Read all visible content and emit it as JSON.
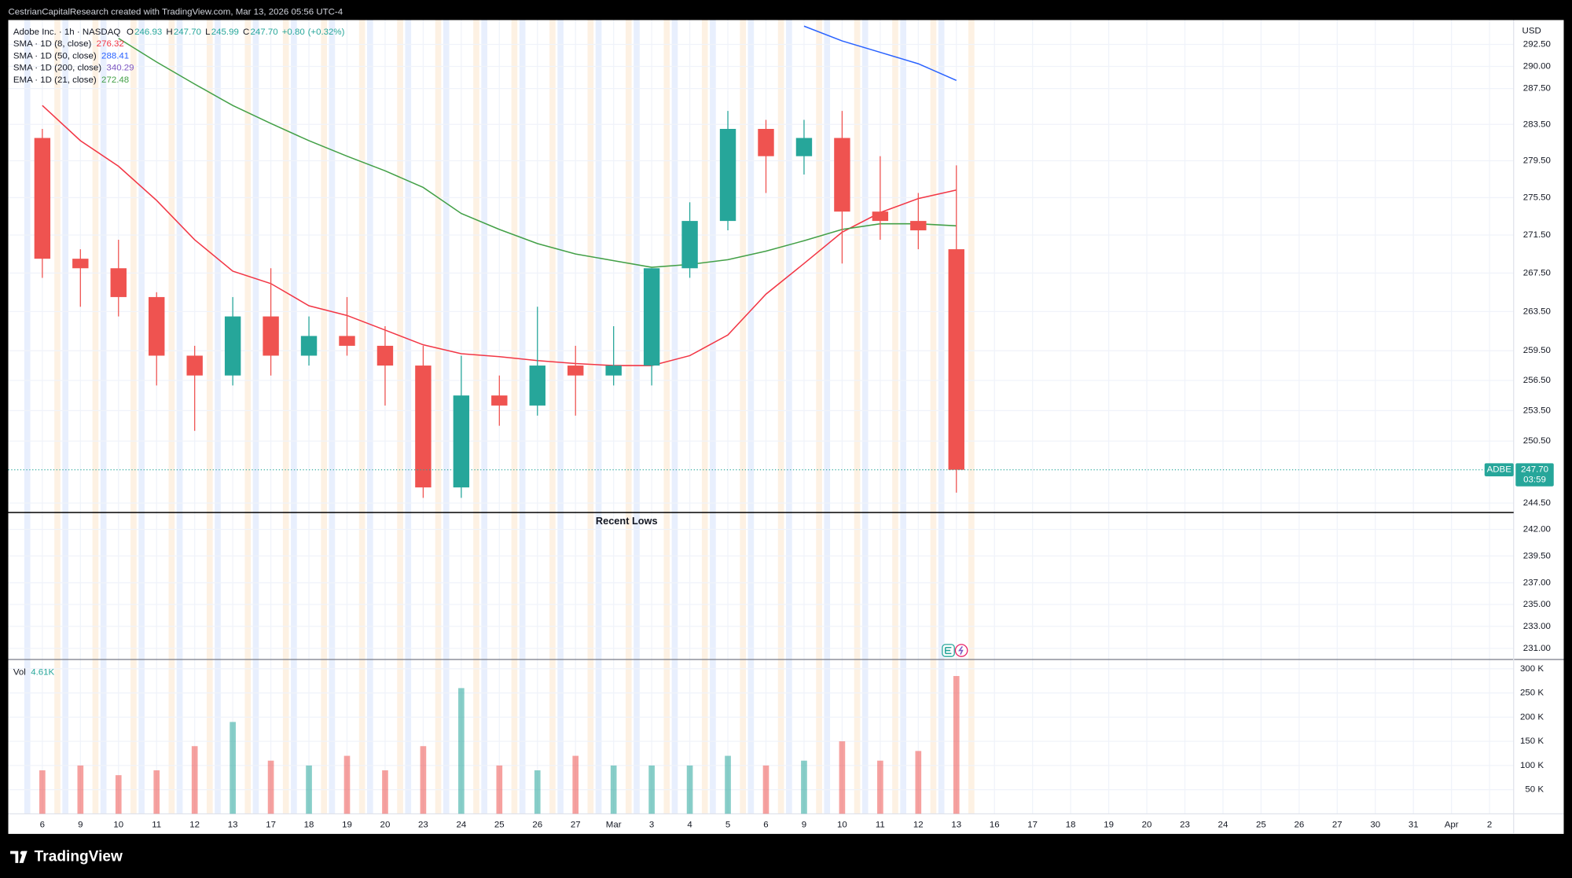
{
  "chart_data": {
    "type": "candlestick",
    "attribution": "CestrianCapitalResearch created with TradingView.com, Mar 13, 2026 05:56 UTC-4",
    "title": "Adobe Inc. · 1h · NASDAQ",
    "last_bar": [
      {
        "name": "O",
        "value": 246.93
      },
      {
        "name": "H",
        "value": 247.7,
        "label": "247.70"
      },
      {
        "name": "L",
        "value": 245.99
      },
      {
        "name": "C",
        "value": 247.7,
        "label": "247.70"
      }
    ],
    "change": {
      "value": 0.8,
      "label": "+0.80"
    },
    "change_pct": {
      "value": 0.32,
      "label": "(+0.32%)"
    },
    "currency": "USD",
    "log_scale": true,
    "grid": true,
    "categories": [
      "6",
      "9",
      "10",
      "11",
      "12",
      "13",
      "17",
      "18",
      "19",
      "20",
      "23",
      "24",
      "25",
      "26",
      "27",
      "Mar",
      "3",
      "4",
      "5",
      "6",
      "9",
      "10",
      "11",
      "12",
      "13",
      "16",
      "17",
      "18",
      "19",
      "20",
      "23",
      "24",
      "25",
      "26",
      "27",
      "30",
      "31",
      "Apr",
      "2"
    ],
    "candles": {
      "up_color": "#26a69a",
      "down_color": "#ef5350",
      "open": [
        282,
        269,
        268,
        265,
        259,
        257,
        263,
        259,
        261,
        260,
        258,
        246,
        255,
        254,
        258,
        257,
        258,
        268,
        273,
        283,
        280,
        282,
        274,
        273,
        270,
        null,
        null,
        null,
        null,
        null,
        null,
        null,
        null,
        null,
        null,
        null,
        null,
        null,
        null
      ],
      "high": [
        283,
        270,
        271,
        265.5,
        260,
        265,
        268,
        263,
        265,
        262,
        260,
        259,
        257,
        264,
        260,
        262,
        268,
        275,
        285,
        284,
        284,
        285,
        280,
        276,
        279,
        null,
        null,
        null,
        null,
        null,
        null,
        null,
        null,
        null,
        null,
        null,
        null,
        null,
        null
      ],
      "low": [
        267,
        264,
        263,
        256,
        251.5,
        256,
        257,
        258,
        259,
        254,
        245,
        245,
        252,
        253,
        253,
        256,
        256,
        267,
        272,
        276,
        278,
        268.5,
        271,
        270,
        245.5,
        null,
        null,
        null,
        null,
        null,
        null,
        null,
        null,
        null,
        null,
        null,
        null,
        null,
        null
      ],
      "close": [
        269,
        268,
        265,
        259,
        257,
        263,
        259,
        261,
        260,
        258,
        246,
        255,
        254,
        258,
        257,
        258,
        268,
        273,
        283,
        280,
        282,
        274,
        273,
        272,
        247.7,
        null,
        null,
        null,
        null,
        null,
        null,
        null,
        null,
        null,
        null,
        null,
        null,
        null,
        null
      ]
    },
    "series": [
      {
        "name": "SMA · 1D (8, close)",
        "color": "#f23645",
        "last_value": 276.32,
        "values": [
          285.6,
          281.7,
          278.9,
          275.2,
          271.0,
          267.7,
          266.4,
          264.1,
          263.1,
          261.6,
          260.1,
          259.2,
          258.9,
          258.5,
          258.2,
          258.0,
          258.0,
          259.0,
          261.1,
          265.3,
          268.5,
          271.8,
          273.9,
          275.4,
          276.32,
          null,
          null,
          null,
          null,
          null,
          null,
          null,
          null,
          null,
          null,
          null,
          null,
          null,
          null
        ]
      },
      {
        "name": "SMA · 1D (50, close)",
        "color": "#2962ff",
        "last_value": 288.41,
        "values": [
          null,
          null,
          null,
          null,
          null,
          null,
          null,
          null,
          null,
          null,
          null,
          null,
          null,
          null,
          null,
          null,
          null,
          null,
          null,
          null,
          294.6,
          292.9,
          291.6,
          290.3,
          288.41,
          null,
          null,
          null,
          null,
          null,
          null,
          null,
          null,
          null,
          null,
          null,
          null,
          null,
          null
        ]
      },
      {
        "name": "SMA · 1D (200, close)",
        "color": "#7e57c2",
        "last_value": 340.29,
        "values": [
          null,
          null,
          null,
          null,
          null,
          null,
          null,
          null,
          null,
          null,
          null,
          null,
          null,
          null,
          null,
          null,
          null,
          null,
          null,
          null,
          null,
          null,
          null,
          null,
          null,
          null,
          null,
          null,
          null,
          null,
          null,
          null,
          null,
          null,
          null,
          null,
          null,
          null,
          null
        ]
      },
      {
        "name": "EMA · 1D (21, close)",
        "color": "#43a047",
        "last_value": 272.48,
        "values": [
          null,
          null,
          293.2,
          290.5,
          288.0,
          285.6,
          283.6,
          281.7,
          280.0,
          278.4,
          276.6,
          273.8,
          272.1,
          270.6,
          269.5,
          268.8,
          268.1,
          268.4,
          268.9,
          269.8,
          270.9,
          272.1,
          272.7,
          272.7,
          272.48,
          null,
          null,
          null,
          null,
          null,
          null,
          null,
          null,
          null,
          null,
          null,
          null,
          null,
          null
        ]
      }
    ],
    "ylim": [
      230.0,
      295.3
    ],
    "yticks": [
      {
        "value": 292.5,
        "label": "292.50"
      },
      {
        "value": 290,
        "label": "290.00"
      },
      {
        "value": 287.5,
        "label": "287.50"
      },
      {
        "value": 283.5,
        "label": "283.50"
      },
      {
        "value": 279.5,
        "label": "279.50"
      },
      {
        "value": 275.5,
        "label": "275.50"
      },
      {
        "value": 271.5,
        "label": "271.50"
      },
      {
        "value": 267.5,
        "label": "267.50"
      },
      {
        "value": 263.5,
        "label": "263.50"
      },
      {
        "value": 259.5,
        "label": "259.50"
      },
      {
        "value": 256.5,
        "label": "256.50"
      },
      {
        "value": 253.5,
        "label": "253.50"
      },
      {
        "value": 250.5,
        "label": "250.50"
      },
      {
        "value": 244.5,
        "label": "244.50"
      },
      {
        "value": 242,
        "label": "242.00"
      },
      {
        "value": 239.5,
        "label": "239.50"
      },
      {
        "value": 237,
        "label": "237.00"
      },
      {
        "value": 235,
        "label": "235.00"
      },
      {
        "value": 233,
        "label": "233.00"
      },
      {
        "value": 231,
        "label": "231.00"
      }
    ],
    "price_line": {
      "symbol": "ADBE",
      "value": 247.7,
      "label": "247.70",
      "countdown": "03:59",
      "color": "#26a69a"
    },
    "annotations": [
      {
        "text": "Recent Lows",
        "value": 243.6
      }
    ],
    "volume": {
      "title": "Vol",
      "last": {
        "value": 4610,
        "label": "4.61K"
      },
      "values": [
        90000,
        100000,
        80000,
        90000,
        140000,
        190000,
        110000,
        100000,
        120000,
        90000,
        140000,
        260000,
        100000,
        90000,
        120000,
        100000,
        100000,
        100000,
        120000,
        100000,
        110000,
        150000,
        110000,
        130000,
        285000,
        null,
        null,
        null,
        null,
        null,
        null,
        null,
        null,
        null,
        null,
        null,
        null,
        null,
        null
      ],
      "ylim": [
        0,
        315000
      ],
      "yticks": [
        {
          "value": 50000,
          "label": "50 K"
        },
        {
          "value": 100000,
          "label": "100 K"
        },
        {
          "value": 150000,
          "label": "150 K"
        },
        {
          "value": 200000,
          "label": "200 K"
        },
        {
          "value": 250000,
          "label": "250 K"
        },
        {
          "value": 300000,
          "label": "300 K"
        }
      ]
    },
    "brand": "TradingView"
  }
}
